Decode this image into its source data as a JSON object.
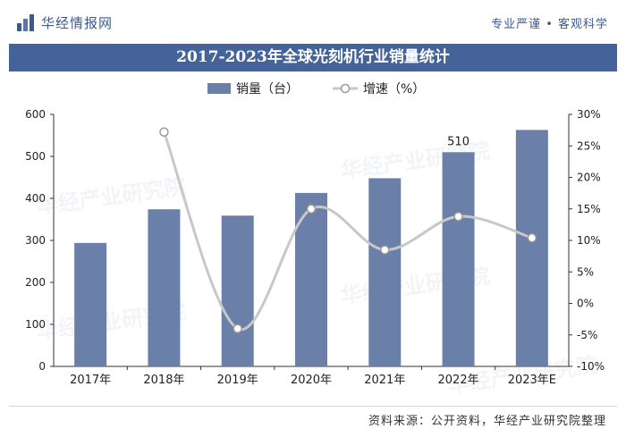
{
  "header": {
    "brand": "华经情报网",
    "slogan": "专业严谨 • 客观科学",
    "logo_icon": "bar-chart-logo-icon"
  },
  "footer": {
    "source": "资料来源：公开资料，华经产业研究院整理"
  },
  "watermark_text": "华经产业研究院",
  "colors": {
    "bar": "#6b80a9",
    "line": "#c8c8c8",
    "title_bg": "#44639a",
    "brand": "#3b5a8f"
  },
  "chart_data": {
    "type": "bar",
    "title": "2017-2023年全球光刻机行业销量统计",
    "categories": [
      "2017年",
      "2018年",
      "2019年",
      "2020年",
      "2021年",
      "2022年",
      "2023年E"
    ],
    "series": [
      {
        "name": "销量（台）",
        "type": "bar",
        "axis": "left",
        "values": [
          294,
          374,
          359,
          413,
          448,
          510,
          563
        ],
        "data_labels": [
          null,
          null,
          null,
          null,
          null,
          "510",
          null
        ]
      },
      {
        "name": "增速（%）",
        "type": "line",
        "axis": "right",
        "values": [
          null,
          27.2,
          -4.0,
          15.0,
          8.5,
          13.8,
          10.4
        ]
      }
    ],
    "y_left": {
      "ylim": [
        0,
        600
      ],
      "ticks": [
        "0",
        "100",
        "200",
        "300",
        "400",
        "500",
        "600"
      ]
    },
    "y_right": {
      "ylim": [
        -10,
        30
      ],
      "ticks": [
        "-10%",
        "-5%",
        "0%",
        "5%",
        "10%",
        "15%",
        "20%",
        "25%",
        "30%"
      ]
    },
    "legend_position": "top-center",
    "grid": false
  }
}
